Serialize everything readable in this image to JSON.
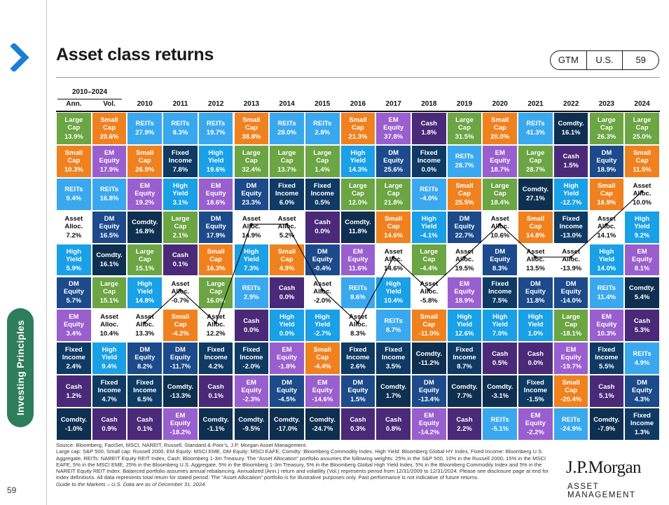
{
  "header": {
    "title": "Asset class returns",
    "pill": [
      "GTM",
      "U.S.",
      "59"
    ]
  },
  "side_label": "Investing Principles",
  "page_number": "59",
  "colors": {
    "Large Cap": "#6ca543",
    "Small Cap": "#f0811f",
    "EM Equity": "#9a5fcf",
    "DM Equity": "#1c4a8a",
    "High Yield": "#1aa0e6",
    "Fixed Income": "#0f3a63",
    "Cash": "#4a2a78",
    "REITs": "#3aa8ee",
    "Asset Alloc.": "#ffffff",
    "Comdty.": "#0e2f4f"
  },
  "chart_data": {
    "type": "table",
    "title": "Asset class returns",
    "summary_header": "2010–2024",
    "summary_columns": [
      "Ann.",
      "Vol."
    ],
    "years": [
      "2010",
      "2011",
      "2012",
      "2013",
      "2014",
      "2015",
      "2016",
      "2017",
      "2018",
      "2019",
      "2020",
      "2021",
      "2022",
      "2023",
      "2024"
    ],
    "columns": [
      [
        [
          "Large Cap",
          "13.9%"
        ],
        [
          "Small Cap",
          "10.3%"
        ],
        [
          "REITs",
          "9.4%"
        ],
        [
          "Asset Alloc.",
          "7.2%"
        ],
        [
          "High Yield",
          "5.9%"
        ],
        [
          "DM Equity",
          "5.7%"
        ],
        [
          "EM Equity",
          "3.4%"
        ],
        [
          "Fixed Income",
          "2.4%"
        ],
        [
          "Cash",
          "1.2%"
        ],
        [
          "Comdty.",
          "-1.0%"
        ]
      ],
      [
        [
          "Small Cap",
          "20.6%"
        ],
        [
          "EM Equity",
          "17.9%"
        ],
        [
          "REITs",
          "16.8%"
        ],
        [
          "DM Equity",
          "16.5%"
        ],
        [
          "Comdty.",
          "16.1%"
        ],
        [
          "Large Cap",
          "15.1%"
        ],
        [
          "Asset Alloc.",
          "10.4%"
        ],
        [
          "High Yield",
          "9.4%"
        ],
        [
          "Fixed Income",
          "4.7%"
        ],
        [
          "Cash",
          "0.9%"
        ]
      ],
      [
        [
          "REITs",
          "27.9%"
        ],
        [
          "Small Cap",
          "26.9%"
        ],
        [
          "EM Equity",
          "19.2%"
        ],
        [
          "Comdty.",
          "16.8%"
        ],
        [
          "Large Cap",
          "15.1%"
        ],
        [
          "High Yield",
          "14.8%"
        ],
        [
          "Asset Alloc.",
          "13.3%"
        ],
        [
          "DM Equity",
          "8.2%"
        ],
        [
          "Fixed Income",
          "6.5%"
        ],
        [
          "Cash",
          "0.1%"
        ]
      ],
      [
        [
          "REITs",
          "8.3%"
        ],
        [
          "Fixed Income",
          "7.8%"
        ],
        [
          "High Yield",
          "3.1%"
        ],
        [
          "Large Cap",
          "2.1%"
        ],
        [
          "Cash",
          "0.1%"
        ],
        [
          "Asset Alloc.",
          "-0.7%"
        ],
        [
          "Small Cap",
          "-4.2%"
        ],
        [
          "DM Equity",
          "-11.7%"
        ],
        [
          "Comdty.",
          "-13.3%"
        ],
        [
          "EM Equity",
          "-18.2%"
        ]
      ],
      [
        [
          "REITs",
          "19.7%"
        ],
        [
          "High Yield",
          "19.6%"
        ],
        [
          "EM Equity",
          "18.6%"
        ],
        [
          "DM Equity",
          "17.9%"
        ],
        [
          "Small Cap",
          "16.3%"
        ],
        [
          "Large Cap",
          "16.0%"
        ],
        [
          "Asset Alloc.",
          "12.2%"
        ],
        [
          "Fixed Income",
          "4.2%"
        ],
        [
          "Cash",
          "0.1%"
        ],
        [
          "Comdty.",
          "-1.1%"
        ]
      ],
      [
        [
          "Small Cap",
          "38.8%"
        ],
        [
          "Large Cap",
          "32.4%"
        ],
        [
          "DM Equity",
          "23.3%"
        ],
        [
          "Asset Alloc.",
          "14.9%"
        ],
        [
          "High Yield",
          "7.3%"
        ],
        [
          "REITs",
          "2.9%"
        ],
        [
          "Cash",
          "0.0%"
        ],
        [
          "Fixed Income",
          "-2.0%"
        ],
        [
          "EM Equity",
          "-2.3%"
        ],
        [
          "Comdty.",
          "-9.5%"
        ]
      ],
      [
        [
          "REITs",
          "28.0%"
        ],
        [
          "Large Cap",
          "13.7%"
        ],
        [
          "Fixed Income",
          "6.0%"
        ],
        [
          "Asset Alloc.",
          "5.2%"
        ],
        [
          "Small Cap",
          "4.9%"
        ],
        [
          "Cash",
          "0.0%"
        ],
        [
          "High Yield",
          "0.0%"
        ],
        [
          "EM Equity",
          "-1.8%"
        ],
        [
          "DM Equity",
          "-4.5%"
        ],
        [
          "Comdty.",
          "-17.0%"
        ]
      ],
      [
        [
          "REITs",
          "2.8%"
        ],
        [
          "Large Cap",
          "1.4%"
        ],
        [
          "Fixed Income",
          "0.5%"
        ],
        [
          "Cash",
          "0.0%"
        ],
        [
          "DM Equity",
          "-0.4%"
        ],
        [
          "Asset Alloc.",
          "-2.0%"
        ],
        [
          "High Yield",
          "-2.7%"
        ],
        [
          "Small Cap",
          "-4.4%"
        ],
        [
          "EM Equity",
          "-14.6%"
        ],
        [
          "Comdty.",
          "-24.7%"
        ]
      ],
      [
        [
          "Small Cap",
          "21.3%"
        ],
        [
          "High Yield",
          "14.3%"
        ],
        [
          "Large Cap",
          "12.0%"
        ],
        [
          "Comdty.",
          "11.8%"
        ],
        [
          "EM Equity",
          "11.6%"
        ],
        [
          "REITs",
          "8.6%"
        ],
        [
          "Asset Alloc.",
          "8.3%"
        ],
        [
          "Fixed Income",
          "2.6%"
        ],
        [
          "DM Equity",
          "1.5%"
        ],
        [
          "Cash",
          "0.3%"
        ]
      ],
      [
        [
          "EM Equity",
          "37.8%"
        ],
        [
          "DM Equity",
          "25.6%"
        ],
        [
          "Large Cap",
          "21.8%"
        ],
        [
          "Small Cap",
          "14.6%"
        ],
        [
          "Asset Alloc.",
          "14.6%"
        ],
        [
          "High Yield",
          "10.4%"
        ],
        [
          "REITs",
          "8.7%"
        ],
        [
          "Fixed Income",
          "3.5%"
        ],
        [
          "Comdty.",
          "1.7%"
        ],
        [
          "Cash",
          "0.8%"
        ]
      ],
      [
        [
          "Cash",
          "1.8%"
        ],
        [
          "Fixed Income",
          "0.0%"
        ],
        [
          "REITs",
          "-4.0%"
        ],
        [
          "High Yield",
          "-4.1%"
        ],
        [
          "Large Cap",
          "-4.4%"
        ],
        [
          "Asset Alloc.",
          "-5.8%"
        ],
        [
          "Small Cap",
          "-11.0%"
        ],
        [
          "Comdty.",
          "-11.2%"
        ],
        [
          "DM Equity",
          "-13.4%"
        ],
        [
          "EM Equity",
          "-14.2%"
        ]
      ],
      [
        [
          "Large Cap",
          "31.5%"
        ],
        [
          "REITs",
          "28.7%"
        ],
        [
          "Small Cap",
          "25.5%"
        ],
        [
          "DM Equity",
          "22.7%"
        ],
        [
          "Asset Alloc.",
          "19.5%"
        ],
        [
          "EM Equity",
          "18.9%"
        ],
        [
          "High Yield",
          "12.6%"
        ],
        [
          "Fixed Income",
          "8.7%"
        ],
        [
          "Comdty.",
          "7.7%"
        ],
        [
          "Cash",
          "2.2%"
        ]
      ],
      [
        [
          "Small Cap",
          "20.0%"
        ],
        [
          "EM Equity",
          "18.7%"
        ],
        [
          "Large Cap",
          "18.4%"
        ],
        [
          "Asset Alloc.",
          "10.6%"
        ],
        [
          "DM Equity",
          "8.3%"
        ],
        [
          "Fixed Income",
          "7.5%"
        ],
        [
          "High Yield",
          "7.0%"
        ],
        [
          "Cash",
          "0.5%"
        ],
        [
          "Comdty.",
          "-3.1%"
        ],
        [
          "REITs",
          "-5.1%"
        ]
      ],
      [
        [
          "REITs",
          "41.3%"
        ],
        [
          "Large Cap",
          "28.7%"
        ],
        [
          "Comdty.",
          "27.1%"
        ],
        [
          "Small Cap",
          "14.8%"
        ],
        [
          "Asset Alloc.",
          "13.5%"
        ],
        [
          "DM Equity",
          "11.8%"
        ],
        [
          "High Yield",
          "1.0%"
        ],
        [
          "Cash",
          "0.0%"
        ],
        [
          "Fixed Income",
          "-1.5%"
        ],
        [
          "EM Equity",
          "-2.2%"
        ]
      ],
      [
        [
          "Comdty.",
          "16.1%"
        ],
        [
          "Cash",
          "1.5%"
        ],
        [
          "High Yield",
          "-12.7%"
        ],
        [
          "Fixed Income",
          "-13.0%"
        ],
        [
          "Asset Alloc.",
          "-13.9%"
        ],
        [
          "DM Equity",
          "-14.0%"
        ],
        [
          "Large Cap",
          "-18.1%"
        ],
        [
          "EM Equity",
          "-19.7%"
        ],
        [
          "Small Cap",
          "-20.4%"
        ],
        [
          "REITs",
          "-24.9%"
        ]
      ],
      [
        [
          "Large Cap",
          "26.3%"
        ],
        [
          "DM Equity",
          "18.9%"
        ],
        [
          "Small Cap",
          "16.9%"
        ],
        [
          "Asset Alloc.",
          "14.1%"
        ],
        [
          "High Yield",
          "14.0%"
        ],
        [
          "REITs",
          "11.4%"
        ],
        [
          "EM Equity",
          "10.3%"
        ],
        [
          "Fixed Income",
          "5.5%"
        ],
        [
          "Cash",
          "5.1%"
        ],
        [
          "Comdty.",
          "-7.9%"
        ]
      ],
      [
        [
          "Large Cap",
          "25.0%"
        ],
        [
          "Small Cap",
          "11.5%"
        ],
        [
          "Asset Alloc.",
          "10.0%"
        ],
        [
          "High Yield",
          "9.2%"
        ],
        [
          "EM Equity",
          "8.1%"
        ],
        [
          "Comdty.",
          "5.4%"
        ],
        [
          "Cash",
          "5.3%"
        ],
        [
          "REITs",
          "4.9%"
        ],
        [
          "DM Equity",
          "4.3%"
        ],
        [
          "Fixed Income",
          "1.3%"
        ]
      ]
    ]
  },
  "footnotes": {
    "source": "Source: Bloomberg, FactSet, MSCI, NAREIT, Russell, Standard & Poor’s, J.P. Morgan Asset Management.",
    "body": "Large cap: S&P 500, Small cap: Russell 2000, EM Equity: MSCI EME, DM Equity: MSCI EAFE, Comdty: Bloomberg Commodity Index, High Yield: Bloomberg Global HY Index, Fixed Income: Bloomberg U.S. Aggregate, REITs: NAREIT Equity REIT Index, Cash: Bloomberg 1-3m Treasury. The “Asset Allocation” portfolio assumes the following weights: 25% in the S&P 500, 10% in the Russell 2000, 15% in the MSCI EAFE, 5% in the MSCI EME, 25% in the Bloomberg U.S. Aggregate, 5% in the Bloomberg 1-3m Treasury, 5% in the Bloomberg Global High Yield Index, 5% in the Bloomberg Commodity Index and 5% in the NAREIT Equity REIT Index. Balanced portfolio assumes annual rebalancing. Annualized (Ann.) return and volatility (Vol.) represents period from 12/31/2009 to 12/31/2024. Please see disclosure page at end for index definitions. All data represents total return for stated period. The “Asset Allocation” portfolio is for illustrative purposes only. Past performance is not indicative of future returns.",
    "guide": "Guide to the Markets – U.S. Data are as of December 31, 2024."
  },
  "logo": {
    "name": "J.P.Morgan",
    "sub": "ASSET MANAGEMENT"
  }
}
